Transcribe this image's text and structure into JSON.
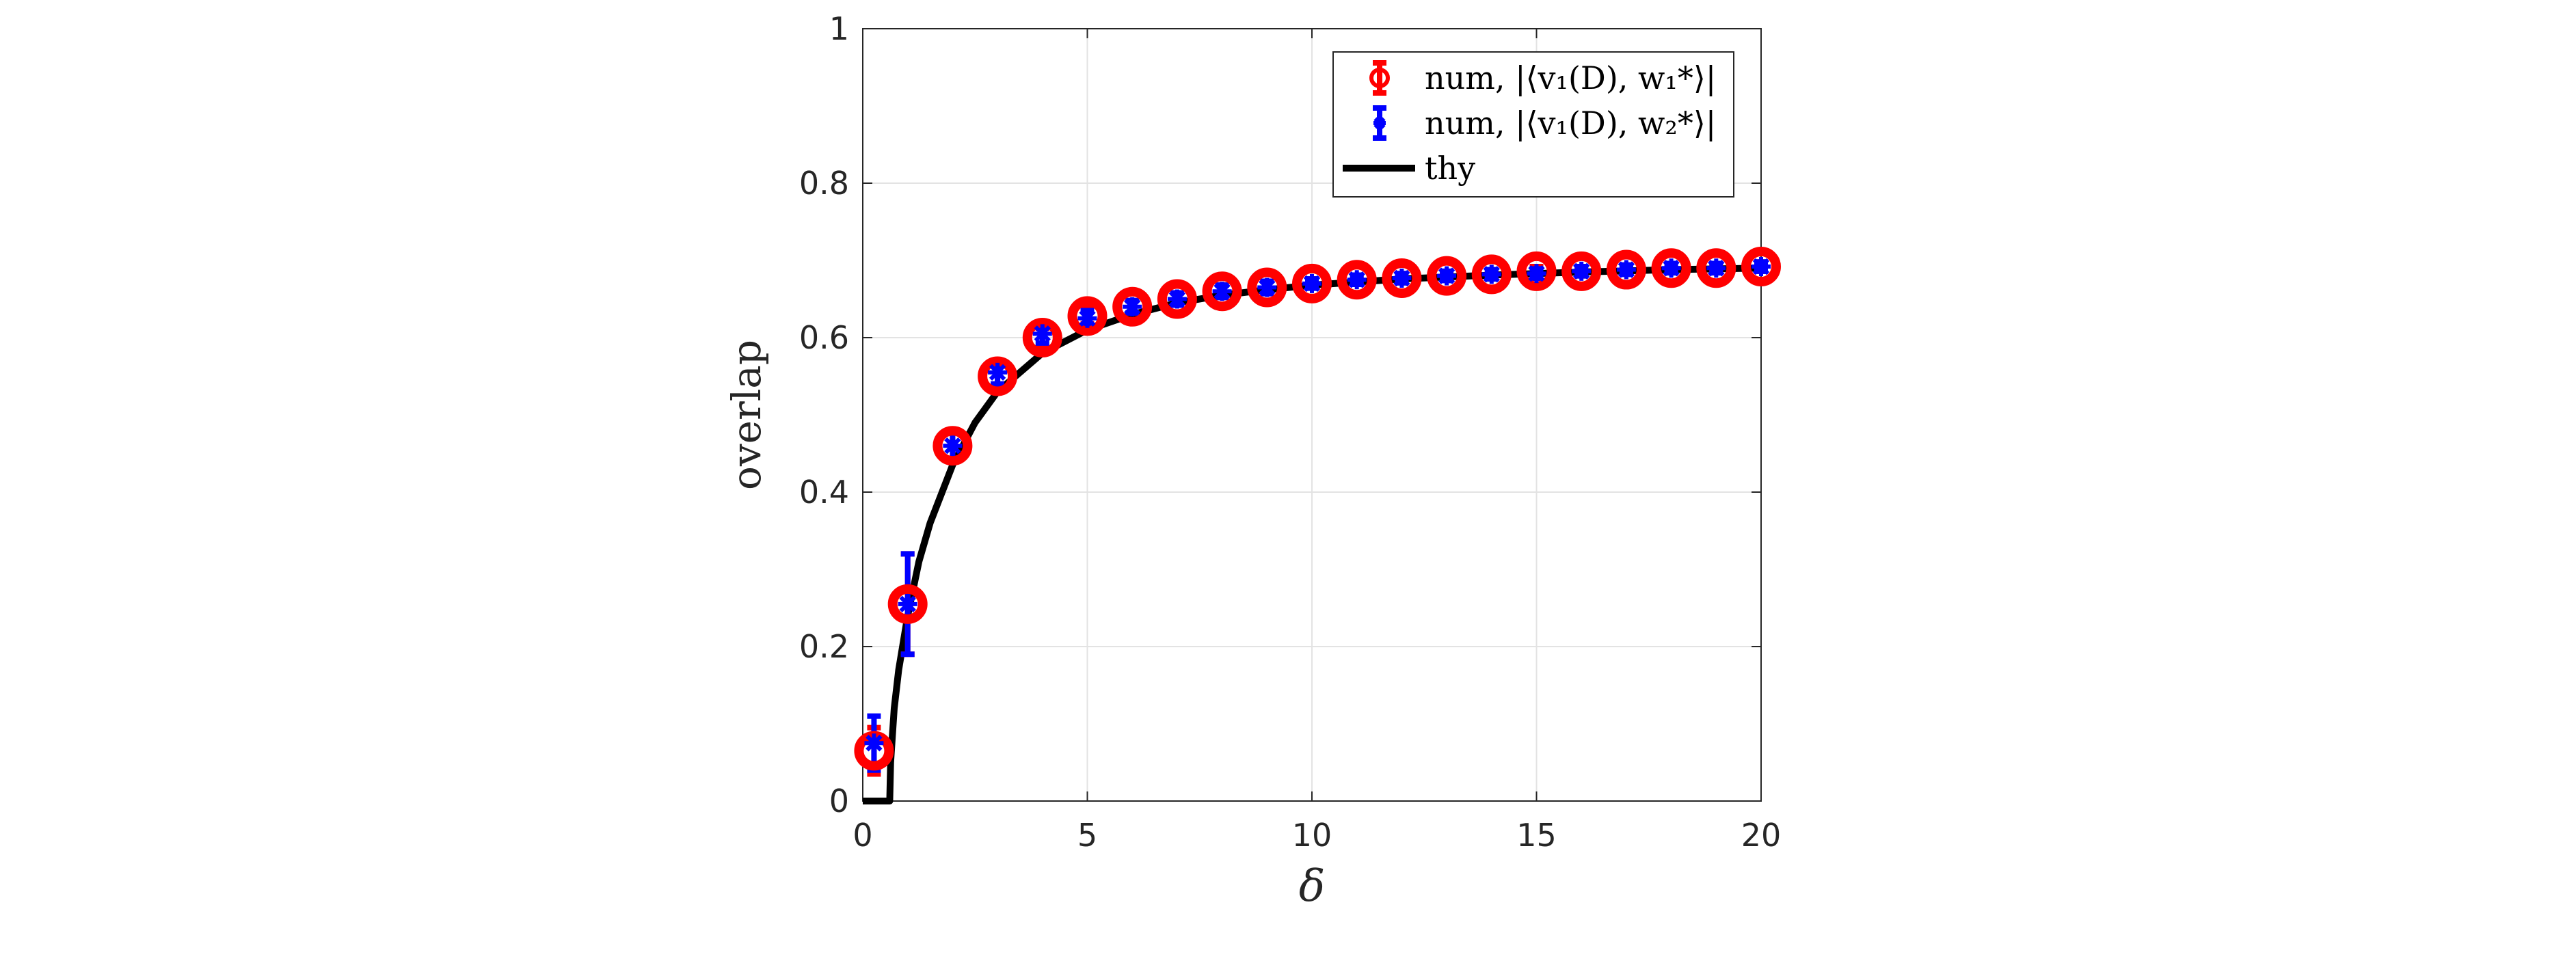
{
  "chart_data": {
    "type": "scatter",
    "xlabel": "δ",
    "ylabel": "overlap",
    "xlim": [
      0,
      20
    ],
    "ylim": [
      0,
      1
    ],
    "xticks": [
      "0",
      "5",
      "10",
      "15",
      "20"
    ],
    "yticks": [
      "0",
      "0.2",
      "0.4",
      "0.6",
      "0.8",
      "1"
    ],
    "grid": true,
    "legend_position": "top-right",
    "series": [
      {
        "name": "num, |⟨v₁(D), w₁*⟩|",
        "color": "#ff0000",
        "marker": "circle",
        "x": [
          0.25,
          1,
          2,
          3,
          4,
          5,
          6,
          7,
          8,
          9,
          10,
          11,
          12,
          13,
          14,
          15,
          16,
          17,
          18,
          19,
          20
        ],
        "y": [
          0.065,
          0.255,
          0.46,
          0.55,
          0.6,
          0.628,
          0.64,
          0.65,
          0.66,
          0.665,
          0.67,
          0.675,
          0.677,
          0.68,
          0.682,
          0.686,
          0.686,
          0.688,
          0.69,
          0.69,
          0.692
        ],
        "err": [
          0.03,
          0.065,
          0.02,
          0.015,
          0.012,
          0.01,
          0.008,
          0.008,
          0.008,
          0.008,
          0.006,
          0.006,
          0.006,
          0.006,
          0.006,
          0.006,
          0.006,
          0.006,
          0.006,
          0.006,
          0.006
        ]
      },
      {
        "name": "num, |⟨v₁(D), w₂*⟩|",
        "color": "#0000ff",
        "marker": "star",
        "x": [
          0.25,
          1,
          2,
          3,
          4,
          5,
          6,
          7,
          8,
          9,
          10,
          11,
          12,
          13,
          14,
          15,
          16,
          17,
          18,
          19,
          20
        ],
        "y": [
          0.075,
          0.255,
          0.46,
          0.555,
          0.605,
          0.625,
          0.64,
          0.65,
          0.66,
          0.665,
          0.67,
          0.675,
          0.677,
          0.68,
          0.682,
          0.683,
          0.686,
          0.688,
          0.69,
          0.69,
          0.692
        ],
        "err": [
          0.035,
          0.065,
          0.02,
          0.015,
          0.012,
          0.01,
          0.008,
          0.008,
          0.008,
          0.008,
          0.006,
          0.006,
          0.006,
          0.006,
          0.006,
          0.006,
          0.006,
          0.006,
          0.006,
          0.006,
          0.006
        ]
      },
      {
        "name": "thy",
        "color": "#000000",
        "marker": "line",
        "x": [
          0,
          0.6,
          0.62,
          0.7,
          0.8,
          0.9,
          1,
          1.25,
          1.5,
          2,
          2.5,
          3,
          4,
          5,
          6,
          7,
          8,
          9,
          10,
          12,
          14,
          16,
          18,
          20
        ],
        "y": [
          0,
          0,
          0.05,
          0.12,
          0.17,
          0.205,
          0.24,
          0.31,
          0.36,
          0.435,
          0.49,
          0.53,
          0.58,
          0.61,
          0.63,
          0.645,
          0.655,
          0.662,
          0.668,
          0.676,
          0.681,
          0.685,
          0.688,
          0.69
        ]
      }
    ]
  }
}
